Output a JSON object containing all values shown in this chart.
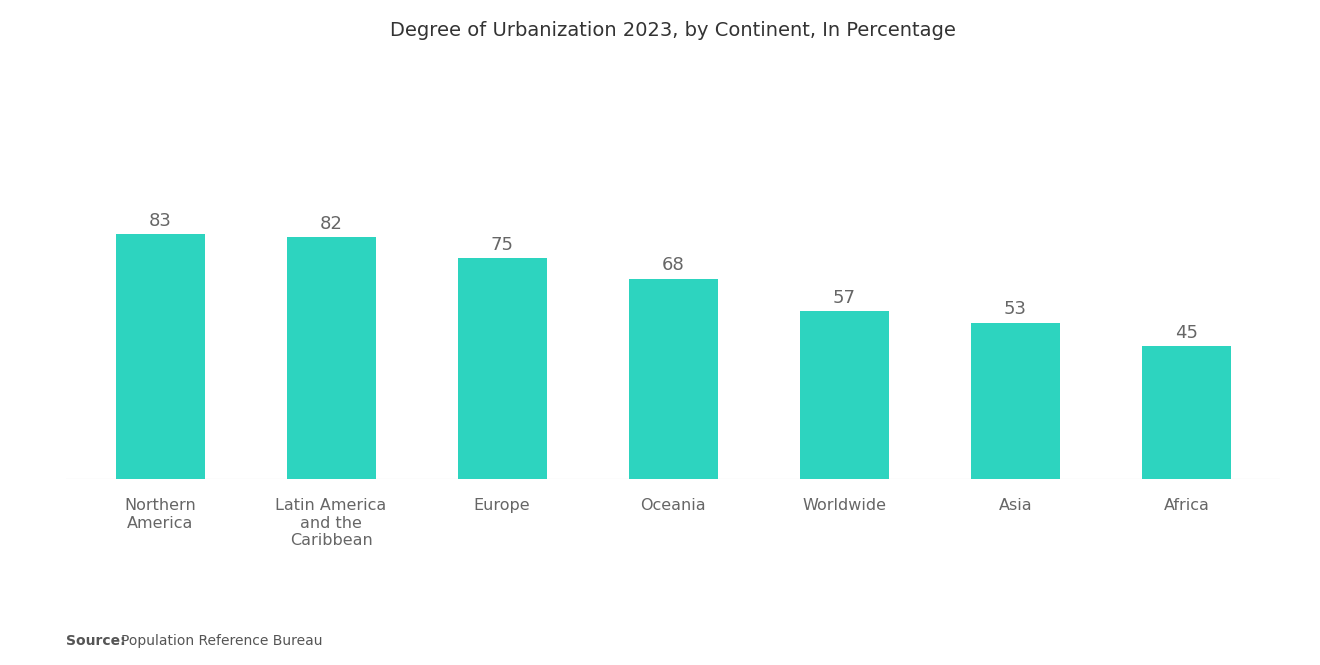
{
  "title": "Degree of Urbanization 2023, by Continent, In Percentage",
  "categories": [
    "Northern\nAmerica",
    "Latin America\nand the\nCaribbean",
    "Europe",
    "Oceania",
    "Worldwide",
    "Asia",
    "Africa"
  ],
  "values": [
    83,
    82,
    75,
    68,
    57,
    53,
    45
  ],
  "bar_color": "#2DD4BF",
  "background_color": "#ffffff",
  "title_fontsize": 14,
  "label_fontsize": 11.5,
  "value_fontsize": 13,
  "source_label_bold": "Source:",
  "source_label_normal": "   Population Reference Bureau",
  "ylim": [
    0,
    140
  ]
}
